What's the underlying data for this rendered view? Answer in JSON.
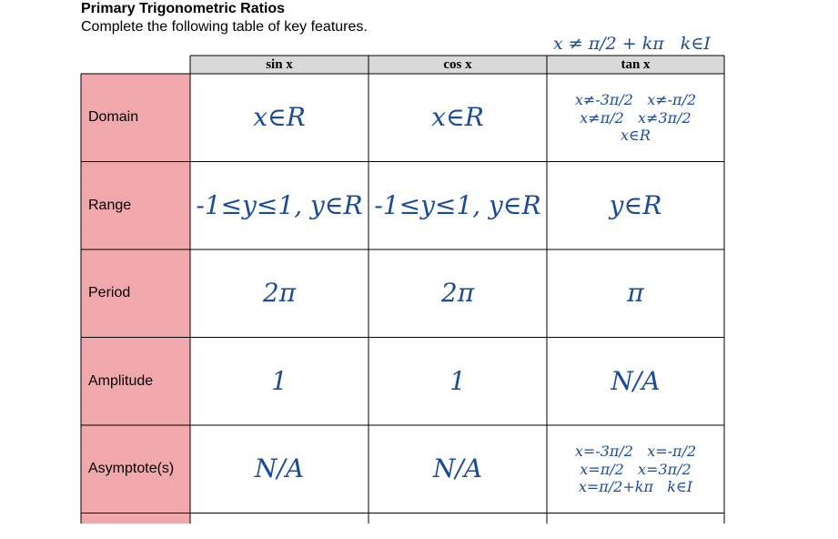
{
  "header": {
    "title": "Primary Trigonometric Ratios",
    "subtitle": "Complete the following table of key features."
  },
  "annotation": "x ≠ π/2 + kπ   k∈I",
  "table": {
    "columns": [
      "sin x",
      "cos x",
      "tan x"
    ],
    "rows": [
      {
        "label": "Domain",
        "cells": [
          [
            "x∈R"
          ],
          [
            "x∈R"
          ],
          [
            "x≠-3π/2   x≠-π/2",
            "x≠π/2   x≠3π/2",
            "x∈R"
          ]
        ]
      },
      {
        "label": "Range",
        "cells": [
          [
            "-1≤y≤1, y∈R"
          ],
          [
            "-1≤y≤1, y∈R"
          ],
          [
            "y∈R"
          ]
        ]
      },
      {
        "label": "Period",
        "cells": [
          [
            "2π"
          ],
          [
            "2π"
          ],
          [
            "π"
          ]
        ]
      },
      {
        "label": "Amplitude",
        "cells": [
          [
            "1"
          ],
          [
            "1"
          ],
          [
            "N/A"
          ]
        ]
      },
      {
        "label": "Asymptote(s)",
        "cells": [
          [
            "N/A"
          ],
          [
            "N/A"
          ],
          [
            "x=-3π/2   x=-π/2",
            "x=π/2   x=3π/2",
            "x=π/2+kπ   k∈I"
          ]
        ]
      }
    ]
  }
}
